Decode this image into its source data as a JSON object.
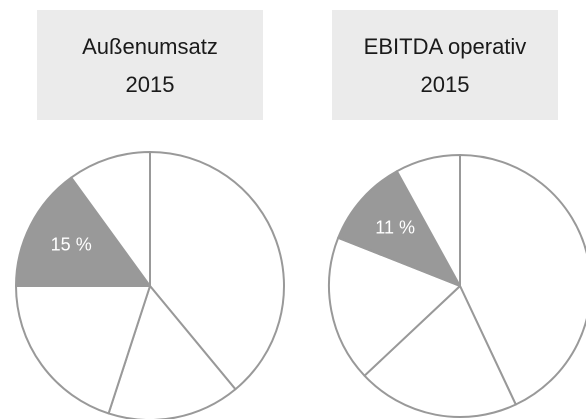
{
  "chart_data": [
    {
      "type": "pie",
      "title": [
        "Außenumsatz",
        "2015"
      ],
      "categories": [
        null,
        null,
        null,
        null,
        null
      ],
      "values": [
        39,
        16,
        20,
        15,
        10
      ],
      "value_labels": [
        null,
        null,
        null,
        "15 %",
        null
      ],
      "colors": [
        "#ffffff",
        "#ffffff",
        "#ffffff",
        "#999999",
        "#ffffff"
      ]
    },
    {
      "type": "pie",
      "title": [
        "EBITDA operativ",
        "2015"
      ],
      "categories": [
        null,
        null,
        null,
        null,
        null
      ],
      "values": [
        43,
        20,
        18,
        11,
        8
      ],
      "value_labels": [
        null,
        null,
        null,
        "11 %",
        null
      ],
      "colors": [
        "#ffffff",
        "#ffffff",
        "#ffffff",
        "#999999",
        "#ffffff"
      ]
    }
  ]
}
